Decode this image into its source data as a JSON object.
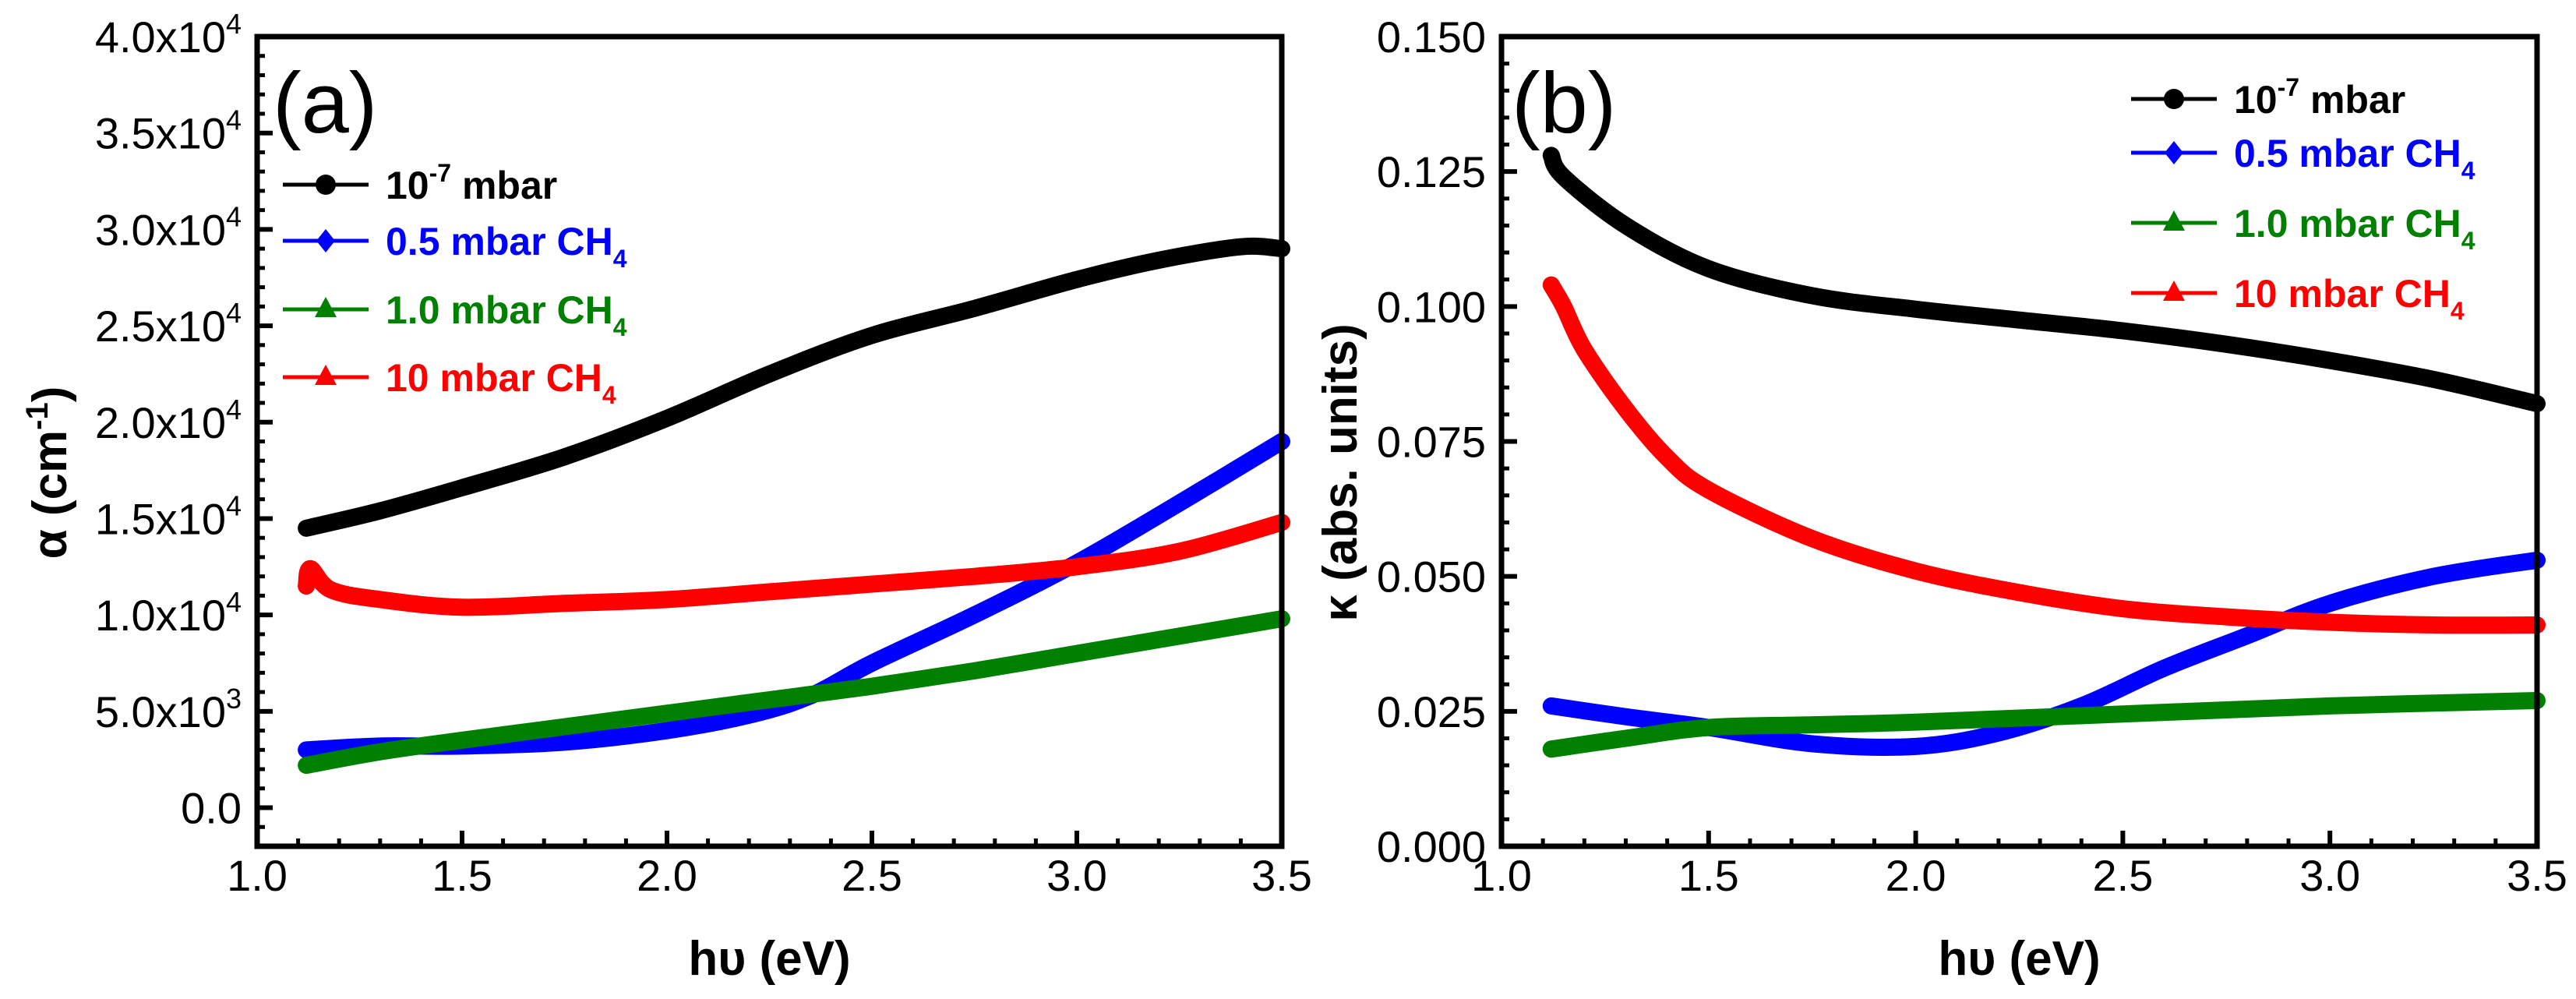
{
  "chart_data": [
    {
      "type": "line",
      "panel_label": "(a)",
      "xlabel": "hυ (eV)",
      "ylabel": {
        "pre": "α (cm",
        "sup": "-1",
        "post": ")"
      },
      "xlim": [
        1.0,
        3.5
      ],
      "ylim": [
        -2000,
        40000
      ],
      "xticks": [
        1.0,
        1.5,
        2.0,
        2.5,
        3.0,
        3.5
      ],
      "xtick_labels": [
        "1.0",
        "1.5",
        "2.0",
        "2.5",
        "3.0",
        "3.5"
      ],
      "yticks": [
        0,
        5000,
        10000,
        15000,
        20000,
        25000,
        30000,
        35000,
        40000
      ],
      "ytick_labels": [
        {
          "base": "0.0",
          "exp": ""
        },
        {
          "base": "5.0x10",
          "exp": "3"
        },
        {
          "base": "1.0x10",
          "exp": "4"
        },
        {
          "base": "1.5x10",
          "exp": "4"
        },
        {
          "base": "2.0x10",
          "exp": "4"
        },
        {
          "base": "2.5x10",
          "exp": "4"
        },
        {
          "base": "3.0x10",
          "exp": "4"
        },
        {
          "base": "3.5x10",
          "exp": "4"
        },
        {
          "base": "4.0x10",
          "exp": "4"
        }
      ],
      "x_minor_step": 0.1,
      "y_minor_step": 1000,
      "legend_position": "top-left",
      "series": [
        {
          "name": {
            "pre": "10",
            "sup": "-7",
            "post": " mbar"
          },
          "color": "#000000",
          "marker": "circle",
          "x": [
            1.12,
            1.3,
            1.5,
            1.75,
            2.0,
            2.25,
            2.5,
            2.75,
            3.0,
            3.2,
            3.4,
            3.5
          ],
          "y": [
            14500,
            15400,
            16600,
            18200,
            20200,
            22500,
            24500,
            25900,
            27400,
            28400,
            29100,
            29000
          ]
        },
        {
          "name": {
            "pre": "0.5 mbar CH",
            "sub": "4"
          },
          "color": "#0000FF",
          "marker": "diamond",
          "x": [
            1.12,
            1.3,
            1.5,
            1.75,
            2.0,
            2.2,
            2.35,
            2.5,
            2.75,
            3.0,
            3.25,
            3.5
          ],
          "y": [
            3000,
            3200,
            3200,
            3400,
            4000,
            4800,
            5800,
            7500,
            10000,
            12700,
            15800,
            19000
          ]
        },
        {
          "name": {
            "pre": "1.0 mbar CH",
            "sub": "4"
          },
          "color": "#008000",
          "marker": "triangle",
          "x": [
            1.12,
            1.3,
            1.5,
            1.75,
            2.0,
            2.25,
            2.5,
            2.75,
            3.0,
            3.25,
            3.5
          ],
          "y": [
            2200,
            2900,
            3500,
            4200,
            4900,
            5600,
            6300,
            7100,
            8000,
            8900,
            9800
          ]
        },
        {
          "name": {
            "pre": "10  mbar CH",
            "sub": "4"
          },
          "color": "#FF0000",
          "marker": "triangle",
          "x": [
            1.12,
            1.13,
            1.18,
            1.3,
            1.5,
            1.75,
            2.0,
            2.25,
            2.5,
            2.75,
            3.0,
            3.25,
            3.5
          ],
          "y": [
            11500,
            12400,
            11300,
            10800,
            10400,
            10600,
            10800,
            11200,
            11600,
            12000,
            12500,
            13300,
            14800
          ]
        }
      ]
    },
    {
      "type": "line",
      "panel_label": "(b)",
      "xlabel": "hυ (eV)",
      "ylabel": {
        "pre": "κ (abs. units)"
      },
      "xlim": [
        1.0,
        3.5
      ],
      "ylim": [
        0.0,
        0.15
      ],
      "xticks": [
        1.0,
        1.5,
        2.0,
        2.5,
        3.0,
        3.5
      ],
      "xtick_labels": [
        "1.0",
        "1.5",
        "2.0",
        "2.5",
        "3.0",
        "3.5"
      ],
      "yticks": [
        0.0,
        0.025,
        0.05,
        0.075,
        0.1,
        0.125,
        0.15
      ],
      "ytick_labels": [
        {
          "base": "0.000",
          "exp": ""
        },
        {
          "base": "0.025",
          "exp": ""
        },
        {
          "base": "0.050",
          "exp": ""
        },
        {
          "base": "0.075",
          "exp": ""
        },
        {
          "base": "0.100",
          "exp": ""
        },
        {
          "base": "0.125",
          "exp": ""
        },
        {
          "base": "0.150",
          "exp": ""
        }
      ],
      "x_minor_step": 0.1,
      "y_minor_step": 0.005,
      "legend_position": "top-right",
      "series": [
        {
          "name": {
            "pre": "10",
            "sup": "-7",
            "post": " mbar"
          },
          "color": "#000000",
          "marker": "circle",
          "x": [
            1.12,
            1.15,
            1.3,
            1.5,
            1.75,
            2.0,
            2.25,
            2.5,
            2.75,
            3.0,
            3.25,
            3.5
          ],
          "y": [
            0.128,
            0.124,
            0.115,
            0.107,
            0.102,
            0.0995,
            0.0975,
            0.0955,
            0.093,
            0.09,
            0.0865,
            0.082
          ]
        },
        {
          "name": {
            "pre": "0.5 mbar CH",
            "sub": "4"
          },
          "color": "#0000FF",
          "marker": "diamond",
          "x": [
            1.12,
            1.3,
            1.5,
            1.75,
            2.0,
            2.2,
            2.4,
            2.6,
            2.8,
            3.0,
            3.25,
            3.5
          ],
          "y": [
            0.026,
            0.024,
            0.022,
            0.019,
            0.0185,
            0.021,
            0.026,
            0.033,
            0.039,
            0.045,
            0.05,
            0.053
          ]
        },
        {
          "name": {
            "pre": "1.0 mbar CH",
            "sub": "4"
          },
          "color": "#008000",
          "marker": "triangle",
          "x": [
            1.12,
            1.3,
            1.5,
            1.75,
            2.0,
            2.5,
            3.0,
            3.5
          ],
          "y": [
            0.018,
            0.02,
            0.022,
            0.0225,
            0.023,
            0.0245,
            0.026,
            0.027
          ]
        },
        {
          "name": {
            "pre": "10  mbar CH",
            "sub": "4"
          },
          "color": "#FF0000",
          "marker": "triangle",
          "x": [
            1.12,
            1.15,
            1.2,
            1.3,
            1.4,
            1.5,
            1.75,
            2.0,
            2.25,
            2.5,
            2.75,
            3.0,
            3.25,
            3.5
          ],
          "y": [
            0.104,
            0.1,
            0.092,
            0.081,
            0.072,
            0.066,
            0.057,
            0.051,
            0.047,
            0.044,
            0.0425,
            0.0415,
            0.041,
            0.041
          ]
        }
      ]
    }
  ]
}
